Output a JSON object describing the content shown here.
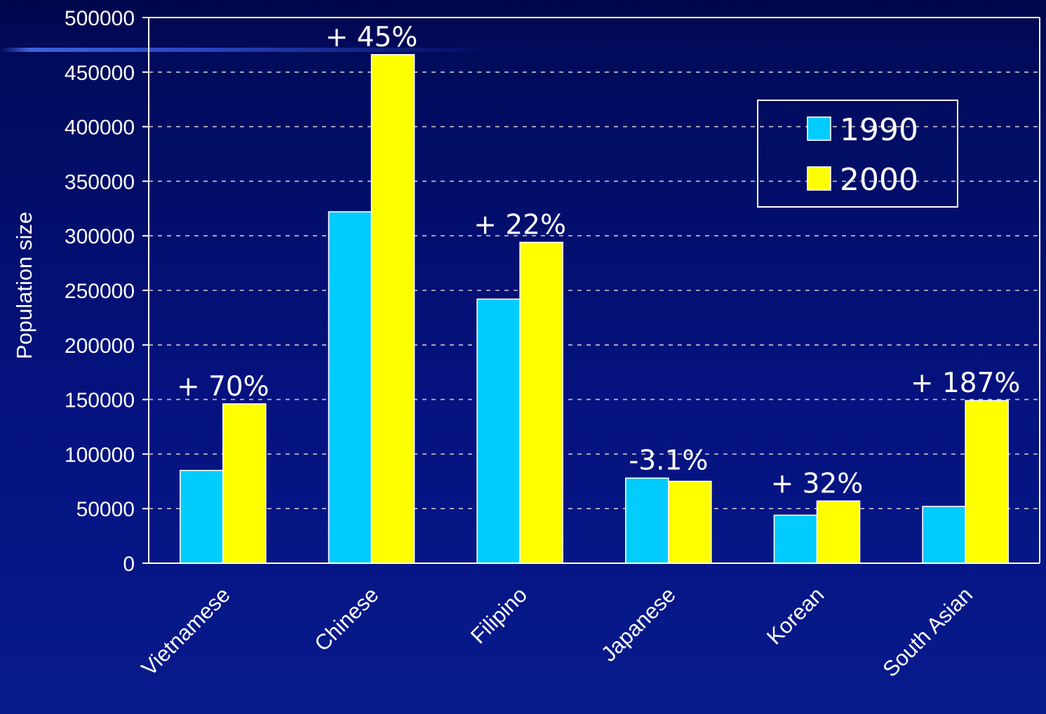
{
  "chart_data": {
    "type": "bar",
    "ylabel": "Population size",
    "xlabel": "",
    "ylim": [
      0,
      500000
    ],
    "yticks": [
      0,
      50000,
      100000,
      150000,
      200000,
      250000,
      300000,
      350000,
      400000,
      450000,
      500000
    ],
    "grid": true,
    "legend_position": "top-right",
    "categories": [
      "Vietnamese",
      "Chinese",
      "Filipino",
      "Japanese",
      "Korean",
      "South Asian"
    ],
    "series": [
      {
        "name": "1990",
        "color": "#00ccff",
        "values": [
          85000,
          322000,
          242000,
          78000,
          44000,
          52000
        ]
      },
      {
        "name": "2000",
        "color": "#ffff00",
        "values": [
          146000,
          466000,
          294000,
          75000,
          57000,
          149000
        ]
      }
    ],
    "annotations": [
      "+ 70%",
      "+ 45%",
      "+ 22%",
      "-3.1%",
      "+ 32%",
      "+ 187%"
    ]
  }
}
